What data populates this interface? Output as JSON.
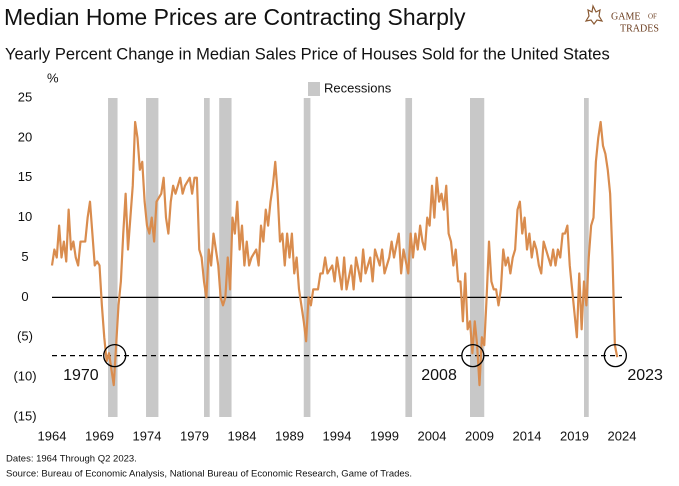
{
  "chart_data": {
    "type": "line",
    "title": "Median Home Prices are Contracting Sharply",
    "subtitle": "Yearly Percent Change in Median Sales Price of Houses Sold for the United States",
    "y_unit": "%",
    "logo": [
      "GAME",
      "OF",
      "TRADES"
    ],
    "notes": [
      "Dates: 1964 Through Q2 2023.",
      "Source: Bureau of Economic Analysis, National Bureau of Economic Research, Game of Trades."
    ],
    "xlim": [
      1964,
      2024
    ],
    "xticks": [
      1964,
      1969,
      1974,
      1979,
      1984,
      1989,
      1994,
      1999,
      2004,
      2009,
      2014,
      2019,
      2024
    ],
    "ylim": [
      -15,
      25
    ],
    "yticks": [
      25,
      20,
      15,
      10,
      5,
      0,
      {
        "value": -5,
        "label": "(5)"
      },
      {
        "value": -10,
        "label": "(10)"
      },
      {
        "value": -15,
        "label": "(15)"
      }
    ],
    "reference_line": -7.3,
    "recessions": {
      "name": "Recessions",
      "color": "#c8c8c8",
      "spans": [
        [
          1969.9,
          1970.9
        ],
        [
          1973.9,
          1975.2
        ],
        [
          1980.0,
          1980.6
        ],
        [
          1981.6,
          1982.9
        ],
        [
          1990.5,
          1991.2
        ],
        [
          2001.2,
          2001.9
        ],
        [
          2008.0,
          2009.5
        ],
        [
          2020.0,
          2020.5
        ]
      ]
    },
    "annotations": [
      {
        "text": "1970",
        "x": 1970.6,
        "y": -7.3
      },
      {
        "text": "2008",
        "x": 2008.3,
        "y": -7.3
      },
      {
        "text": "2023",
        "x": 2023.3,
        "y": -7.3
      }
    ],
    "x": [
      1964,
      1964.25,
      1964.5,
      1964.75,
      1965,
      1965.25,
      1965.5,
      1965.75,
      1966,
      1966.25,
      1966.5,
      1966.75,
      1967,
      1967.5,
      1967.75,
      1968,
      1968.25,
      1968.5,
      1968.75,
      1969,
      1969.25,
      1969.5,
      1969.75,
      1970,
      1970.25,
      1970.5,
      1970.75,
      1971,
      1971.25,
      1971.5,
      1971.75,
      1972,
      1972.25,
      1972.5,
      1972.75,
      1973,
      1973.25,
      1973.5,
      1973.75,
      1974,
      1974.25,
      1974.5,
      1974.75,
      1975,
      1975.5,
      1975.75,
      1976,
      1976.25,
      1976.5,
      1976.75,
      1977,
      1977.5,
      1977.75,
      1978,
      1978.5,
      1978.75,
      1979,
      1979.25,
      1979.5,
      1979.75,
      1980,
      1980.25,
      1980.5,
      1980.75,
      1981,
      1981.25,
      1981.5,
      1981.75,
      1982,
      1982.25,
      1982.5,
      1982.75,
      1983,
      1983.25,
      1983.5,
      1983.75,
      1984,
      1984.25,
      1984.5,
      1984.75,
      1985,
      1985.5,
      1985.75,
      1986,
      1986.25,
      1986.5,
      1986.75,
      1987,
      1987.25,
      1987.5,
      1987.75,
      1988,
      1988.25,
      1988.5,
      1988.75,
      1989,
      1989.25,
      1989.5,
      1989.75,
      1990,
      1990.25,
      1990.5,
      1990.75,
      1991,
      1991.25,
      1991.5,
      1991.75,
      1992,
      1992.25,
      1992.5,
      1992.75,
      1993,
      1993.5,
      1993.75,
      1994,
      1994.5,
      1994.75,
      1995,
      1995.5,
      1995.75,
      1996,
      1996.5,
      1996.75,
      1997,
      1997.5,
      1997.75,
      1998,
      1998.5,
      1998.75,
      1999,
      1999.5,
      1999.75,
      2000,
      2000.5,
      2000.75,
      2001,
      2001.5,
      2001.75,
      2002,
      2002.25,
      2002.5,
      2002.75,
      2003,
      2003.25,
      2003.5,
      2003.75,
      2004,
      2004.25,
      2004.5,
      2004.75,
      2005,
      2005.25,
      2005.5,
      2005.75,
      2006,
      2006.25,
      2006.5,
      2006.75,
      2007,
      2007.25,
      2007.5,
      2007.75,
      2008,
      2008.25,
      2008.5,
      2008.75,
      2009,
      2009.25,
      2009.5,
      2009.75,
      2010,
      2010.25,
      2010.5,
      2010.75,
      2011,
      2011.25,
      2011.5,
      2011.75,
      2012,
      2012.25,
      2012.5,
      2012.75,
      2013,
      2013.25,
      2013.5,
      2013.75,
      2014,
      2014.25,
      2014.5,
      2014.75,
      2015,
      2015.25,
      2015.5,
      2015.75,
      2016,
      2016.25,
      2016.5,
      2016.75,
      2017,
      2017.25,
      2017.5,
      2017.75,
      2018,
      2018.25,
      2018.5,
      2018.75,
      2019,
      2019.25,
      2019.5,
      2019.75,
      2020,
      2020.25,
      2020.5,
      2020.75,
      2021,
      2021.25,
      2021.5,
      2021.75,
      2022,
      2022.25,
      2022.5,
      2022.75,
      2023,
      2023.25,
      2023.5
    ],
    "series": [
      {
        "color": "#d98c4e",
        "values": [
          4,
          6,
          5,
          9,
          5,
          7,
          4.5,
          11,
          6,
          7,
          5,
          4,
          7,
          7,
          10,
          12,
          8,
          4,
          4.5,
          4,
          -1,
          -5,
          -8,
          -7,
          -9,
          -11,
          -6,
          -1,
          2,
          8,
          13,
          6,
          10,
          14,
          22,
          20,
          16,
          17,
          12,
          9,
          8,
          10,
          7,
          12,
          13,
          15,
          10,
          8,
          12,
          14,
          13,
          15,
          13,
          14,
          15,
          13,
          15,
          15,
          6,
          5,
          2,
          0,
          6,
          4,
          8,
          6,
          4,
          0,
          -1,
          0,
          5,
          1,
          10,
          8,
          12,
          6,
          9,
          4,
          7,
          4,
          5,
          6,
          4,
          9,
          7,
          11,
          9,
          12,
          14,
          17,
          13,
          7,
          8,
          4,
          8,
          5,
          8,
          3,
          5,
          1,
          -1,
          -3,
          -5.5,
          0,
          -1,
          1,
          1,
          1,
          3,
          3,
          5,
          3,
          4,
          2,
          5,
          1,
          5,
          1,
          4,
          1,
          5,
          2,
          6,
          3,
          5,
          2,
          6,
          4,
          6,
          3,
          5,
          7,
          5,
          8,
          3,
          6,
          3,
          8,
          5,
          8,
          6,
          9,
          7,
          6,
          10,
          9,
          14,
          10,
          15,
          12,
          13,
          11,
          14,
          8,
          7,
          4,
          6,
          2,
          2,
          -3,
          3,
          -4,
          -3,
          -7,
          -3,
          -6,
          -11,
          -5,
          -6,
          0,
          7,
          2,
          1,
          1,
          -1,
          1,
          6,
          4,
          5,
          3,
          5,
          6,
          11,
          12,
          8,
          10,
          6,
          8,
          5,
          7,
          6,
          4,
          3,
          7,
          6,
          5,
          4,
          6,
          4,
          6,
          5,
          8,
          8,
          9,
          4,
          1,
          -2,
          -5,
          3,
          -4,
          2,
          -1,
          5,
          9,
          10,
          17,
          20,
          22,
          19,
          18,
          16,
          13,
          5,
          -6,
          -7.5
        ]
      }
    ]
  }
}
